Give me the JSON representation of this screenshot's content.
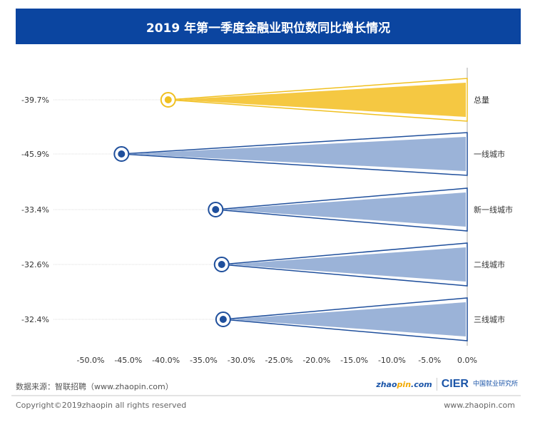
{
  "chart_data": {
    "type": "bar",
    "title": "2019 年第一季度金融业职位数同比增长情况",
    "categories": [
      "总量",
      "一线城市",
      "新一线城市",
      "二线城市",
      "三线城市"
    ],
    "values": [
      -39.7,
      -45.9,
      -33.4,
      -32.6,
      -32.4
    ],
    "value_labels": [
      "-39.7%",
      "-45.9%",
      "-33.4%",
      "-32.6%",
      "-32.4%"
    ],
    "xlim": [
      -50,
      0
    ],
    "xticks": [
      "-50.0%",
      "-45.0%",
      "-40.0%",
      "-35.0%",
      "-30.0%",
      "-25.0%",
      "-20.0%",
      "-15.0%",
      "-10.0%",
      "-5.0%",
      "0.0%"
    ],
    "tick_values": [
      -50,
      -45,
      -40,
      -35,
      -30,
      -25,
      -20,
      -15,
      -10,
      -5,
      0
    ],
    "colors": [
      "#f5c842",
      "#9bb3d8",
      "#9bb3d8",
      "#9bb3d8",
      "#9bb3d8"
    ],
    "stroke_colors": [
      "#f0c020",
      "#1f4f9c",
      "#1f4f9c",
      "#1f4f9c",
      "#1f4f9c"
    ],
    "grid": false
  },
  "footer": {
    "source": "数据来源：智联招聘（www.zhaopin.com）",
    "copyright": "Copyright©2019zhaopin all rights reserved",
    "site": "www.zhaopin.com",
    "logo_zhaopin": "zhaopin.com",
    "logo_cier": "CIER",
    "logo_cier_cn": "中国就业研究所"
  }
}
